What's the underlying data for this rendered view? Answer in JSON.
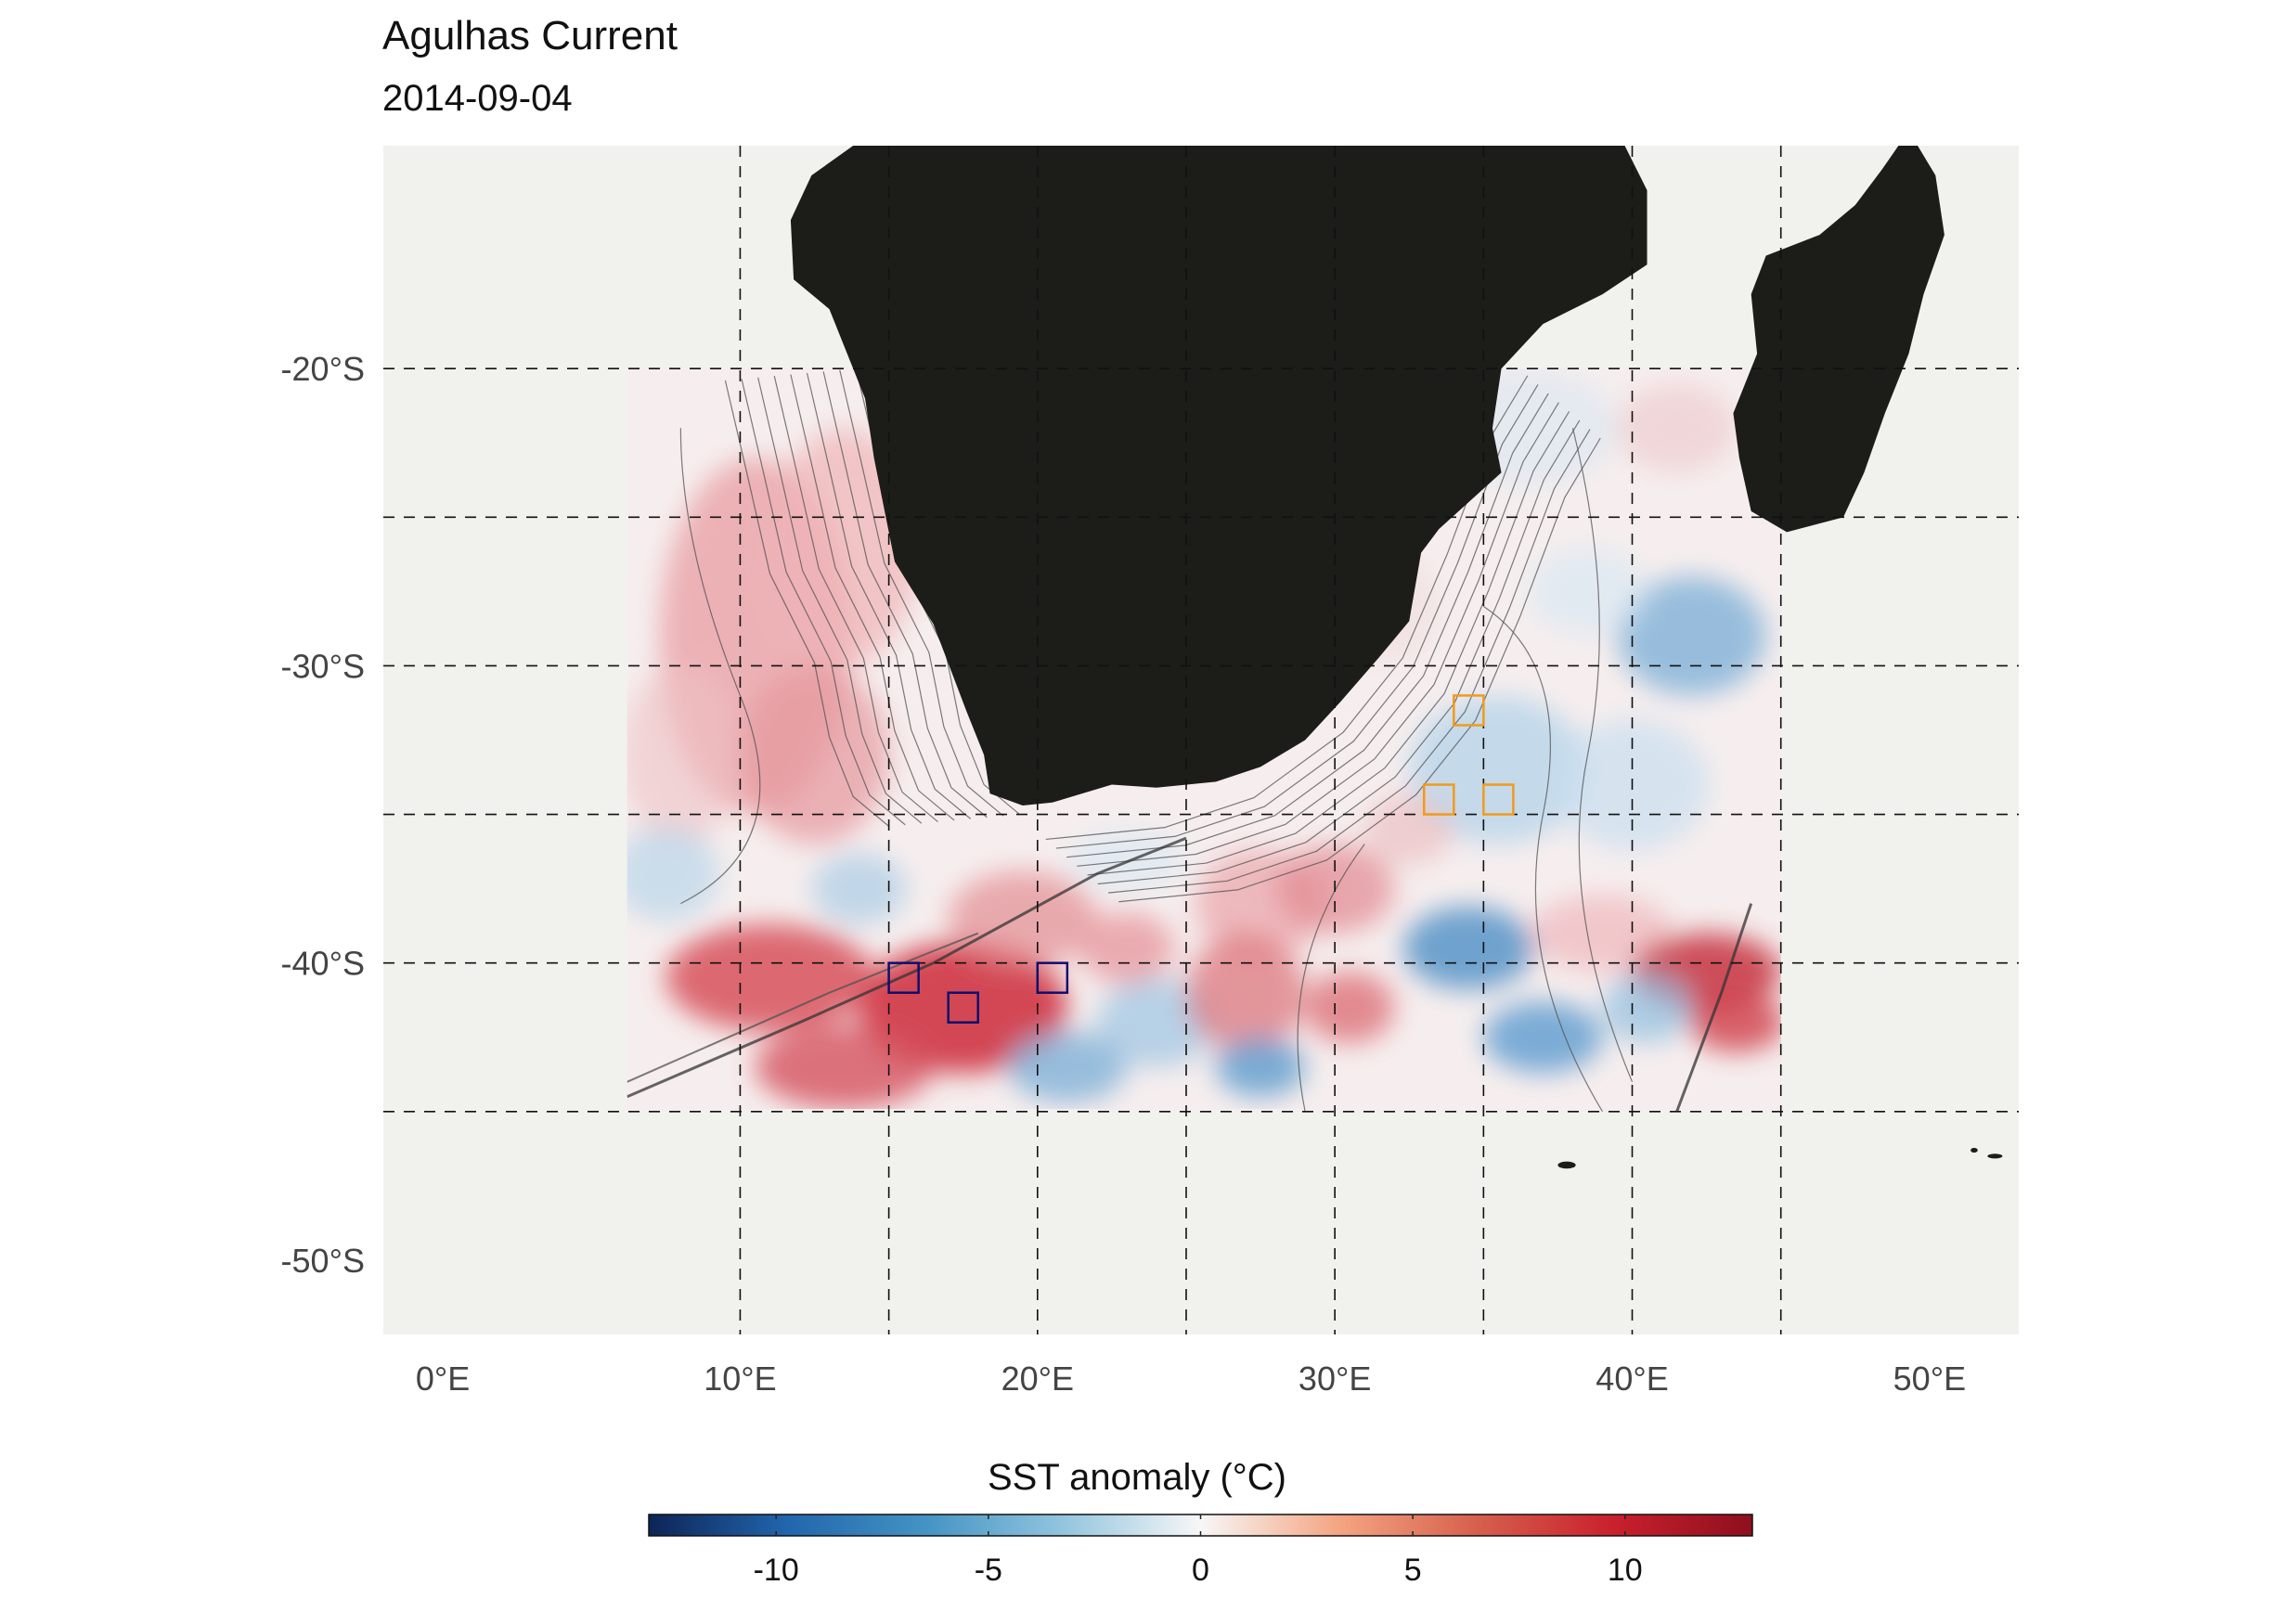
{
  "title": "Agulhas Current",
  "subtitle": "2014-09-04",
  "map": {
    "lon_range": [
      -2,
      53
    ],
    "lat_range": [
      -52.5,
      -12.5
    ],
    "data_extent": {
      "lon": [
        6.2,
        45
      ],
      "lat": [
        -45,
        -20
      ]
    },
    "lat_ticks": [
      {
        "value": -20,
        "label": "-20°S"
      },
      {
        "value": -30,
        "label": "-30°S"
      },
      {
        "value": -40,
        "label": "-40°S"
      },
      {
        "value": -50,
        "label": "-50°S"
      }
    ],
    "lon_ticks": [
      {
        "value": 0,
        "label": "0°E"
      },
      {
        "value": 10,
        "label": "10°E"
      },
      {
        "value": 20,
        "label": "20°E"
      },
      {
        "value": 30,
        "label": "30°E"
      },
      {
        "value": 40,
        "label": "40°E"
      },
      {
        "value": 50,
        "label": "50°E"
      }
    ],
    "grid_lons": [
      10,
      15,
      20,
      25,
      30,
      35,
      40,
      45
    ],
    "grid_lats": [
      -20,
      -25,
      -30,
      -35,
      -40,
      -45
    ],
    "ocean_color": "#f1f1ed",
    "land_color": "#1c1c18",
    "cold_boxes_color": "#0e0e6e",
    "warm_boxes_color": "#f29a1a",
    "cold_boxes": [
      [
        15.5,
        -40.5
      ],
      [
        17.5,
        -41.5
      ],
      [
        20.5,
        -40.5
      ]
    ],
    "warm_boxes": [
      [
        34.5,
        -31.5
      ],
      [
        33.5,
        -34.5
      ],
      [
        35.5,
        -34.5
      ]
    ]
  },
  "colorbar": {
    "title": "SST anomaly (°C)",
    "range": [
      -13,
      13
    ],
    "ticks": [
      {
        "value": -10,
        "label": "-10"
      },
      {
        "value": -5,
        "label": "-5"
      },
      {
        "value": 0,
        "label": "0"
      },
      {
        "value": 5,
        "label": "5"
      },
      {
        "value": 10,
        "label": "10"
      }
    ],
    "colors": [
      "#0d2456",
      "#2166ac",
      "#4393c3",
      "#92c5de",
      "#f7f7f7",
      "#f4a582",
      "#d6604d",
      "#c9202c",
      "#8e0f1e"
    ]
  }
}
